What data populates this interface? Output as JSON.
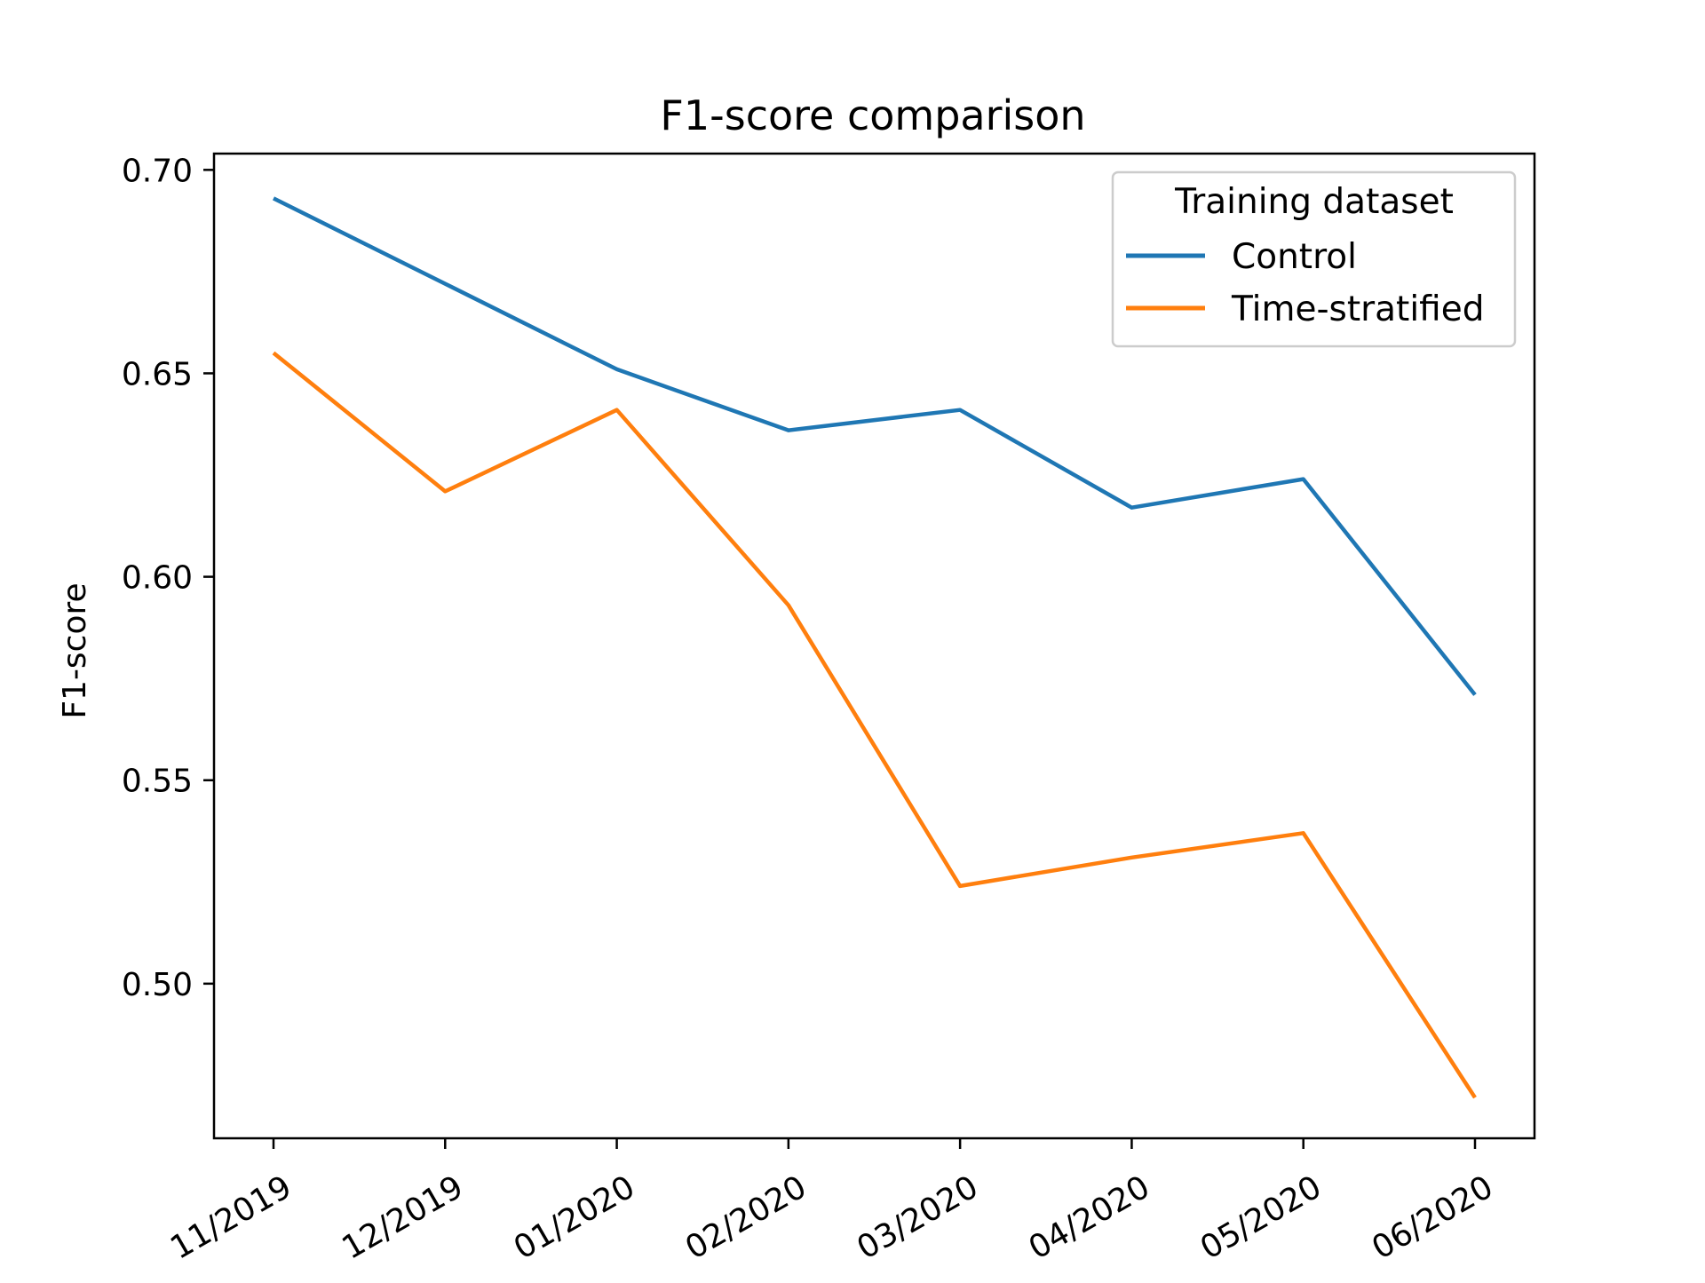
{
  "chart_data": {
    "type": "line",
    "title": "F1-score comparison",
    "xlabel": "",
    "ylabel": "F1-score",
    "categories": [
      "11/2019",
      "12/2019",
      "01/2020",
      "02/2020",
      "03/2020",
      "04/2020",
      "05/2020",
      "06/2020"
    ],
    "series": [
      {
        "name": "Control",
        "color": "#1f77b4",
        "values": [
          0.693,
          0.672,
          0.651,
          0.636,
          0.641,
          0.617,
          0.624,
          0.571
        ]
      },
      {
        "name": "Time-stratified",
        "color": "#ff7f0e",
        "values": [
          0.655,
          0.621,
          0.641,
          0.593,
          0.524,
          0.531,
          0.537,
          0.472
        ]
      }
    ],
    "ylim": [
      0.462,
      0.704
    ],
    "yticks": [
      "0.50",
      "0.55",
      "0.60",
      "0.65",
      "0.70"
    ],
    "grid": false,
    "legend": {
      "title": "Training dataset",
      "placement": "upper-right"
    }
  }
}
